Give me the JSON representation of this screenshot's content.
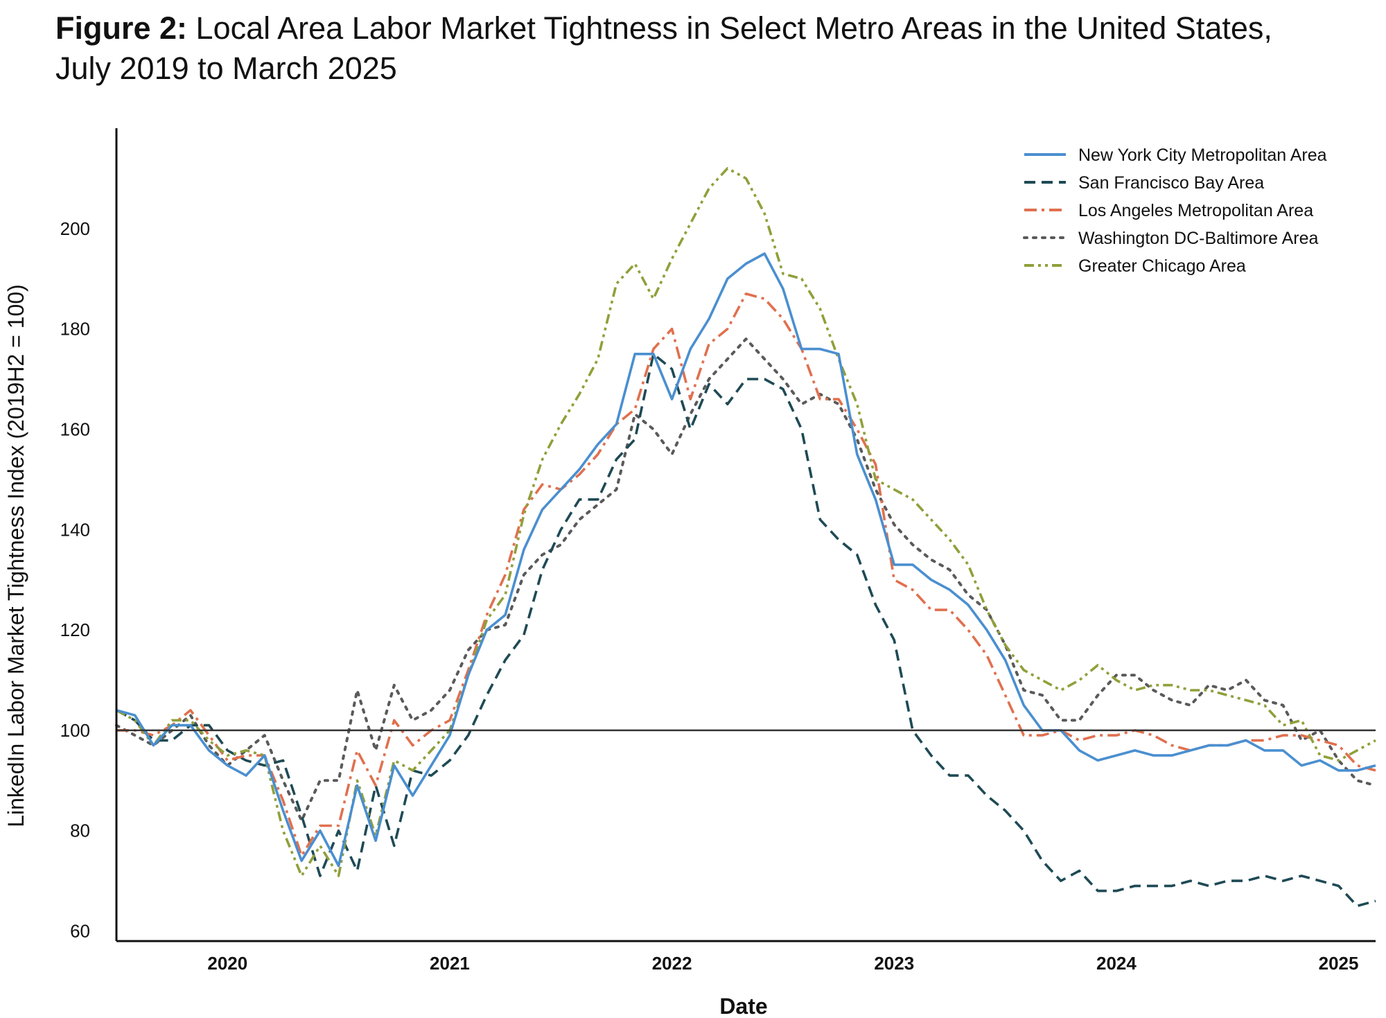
{
  "title": {
    "lead": "Figure 2:",
    "line1": "Local Area Labor Market Tightness in Select Metro Areas in the United States,",
    "line2": "July 2019 to March 2025"
  },
  "chart_data": {
    "type": "line",
    "title": "Figure 2: Local Area Labor Market Tightness in Select Metro Areas in the United States, July 2019 to March 2025",
    "xlabel": "Date",
    "ylabel": "LinkedIn Labor Market Tightness Index (2019H2 = 100)",
    "x_start": "2019-07",
    "x_end": "2025-03",
    "xlim_months": [
      0,
      68
    ],
    "ylim": [
      58,
      220
    ],
    "y_ticks": [
      60,
      80,
      100,
      120,
      140,
      160,
      180,
      200
    ],
    "x_ticks": [
      {
        "label": "2020",
        "month": 6
      },
      {
        "label": "2021",
        "month": 18
      },
      {
        "label": "2022",
        "month": 30
      },
      {
        "label": "2023",
        "month": 42
      },
      {
        "label": "2024",
        "month": 54
      },
      {
        "label": "2025",
        "month": 66
      }
    ],
    "reference_line": 100,
    "legend_position": "top-right",
    "series": [
      {
        "name": "New York City Metropolitan Area",
        "color": "#4a8fd0",
        "dash": "solid",
        "values": [
          104,
          103,
          97,
          101,
          101,
          96,
          93,
          91,
          95,
          84,
          74,
          80,
          73,
          89,
          78,
          93,
          87,
          93,
          99,
          111,
          120,
          123,
          136,
          144,
          148,
          152,
          157,
          161,
          175,
          175,
          166,
          176,
          182,
          190,
          193,
          195,
          188,
          176,
          176,
          175,
          155,
          146,
          133,
          133,
          130,
          128,
          125,
          120,
          114,
          105,
          100,
          100,
          96,
          94,
          95,
          96,
          95,
          95,
          96,
          97,
          97,
          98,
          96,
          96,
          93,
          94,
          92,
          92,
          93
        ]
      },
      {
        "name": "San Francisco Bay Area",
        "color": "#1e4a55",
        "dash": "dashed",
        "values": [
          104,
          102,
          98,
          98,
          101,
          101,
          96,
          94,
          93,
          94,
          83,
          71,
          80,
          72,
          89,
          77,
          92,
          91,
          94,
          99,
          107,
          114,
          119,
          132,
          140,
          146,
          146,
          154,
          158,
          175,
          172,
          160,
          169,
          165,
          170,
          170,
          168,
          160,
          142,
          138,
          135,
          125,
          118,
          100,
          95,
          91,
          91,
          87,
          84,
          80,
          74,
          70,
          72,
          68,
          68,
          69,
          69,
          69,
          70,
          69,
          70,
          70,
          71,
          70,
          71,
          70,
          69,
          65,
          66
        ]
      },
      {
        "name": "Los Angeles Metropolitan Area",
        "color": "#e0704f",
        "dash": "dashdot",
        "values": [
          100,
          100,
          99,
          101,
          104,
          99,
          94,
          95,
          95,
          86,
          75,
          81,
          81,
          96,
          89,
          102,
          97,
          100,
          102,
          112,
          123,
          131,
          144,
          149,
          148,
          151,
          155,
          161,
          164,
          176,
          180,
          166,
          177,
          180,
          187,
          186,
          182,
          176,
          166,
          166,
          160,
          153,
          130,
          128,
          124,
          124,
          120,
          115,
          107,
          99,
          99,
          100,
          98,
          99,
          99,
          100,
          99,
          97,
          96,
          97,
          97,
          98,
          98,
          99,
          99,
          98,
          97,
          93,
          92
        ]
      },
      {
        "name": "Washington DC-Baltimore Area",
        "color": "#5a5a5a",
        "dash": "dotted",
        "values": [
          101,
          99,
          97,
          100,
          103,
          97,
          93,
          96,
          99,
          90,
          82,
          90,
          90,
          108,
          96,
          109,
          102,
          104,
          108,
          116,
          120,
          121,
          131,
          135,
          137,
          142,
          145,
          148,
          163,
          160,
          155,
          163,
          170,
          174,
          178,
          174,
          170,
          165,
          167,
          165,
          158,
          148,
          141,
          137,
          134,
          132,
          127,
          124,
          117,
          108,
          107,
          102,
          102,
          107,
          111,
          111,
          108,
          106,
          105,
          109,
          108,
          110,
          106,
          105,
          98,
          100,
          94,
          90,
          89
        ]
      },
      {
        "name": "Greater Chicago Area",
        "color": "#8fa03a",
        "dash": "dashdotdot",
        "values": [
          104,
          102,
          97,
          102,
          102,
          98,
          95,
          96,
          95,
          80,
          71,
          77,
          71,
          90,
          79,
          94,
          92,
          96,
          100,
          111,
          122,
          127,
          143,
          154,
          161,
          167,
          174,
          189,
          193,
          186,
          194,
          201,
          208,
          212,
          210,
          203,
          191,
          190,
          184,
          174,
          165,
          150,
          148,
          146,
          142,
          138,
          133,
          124,
          117,
          112,
          110,
          108,
          110,
          113,
          110,
          108,
          109,
          109,
          108,
          108,
          107,
          106,
          105,
          101,
          102,
          95,
          94,
          96,
          98
        ]
      }
    ]
  }
}
